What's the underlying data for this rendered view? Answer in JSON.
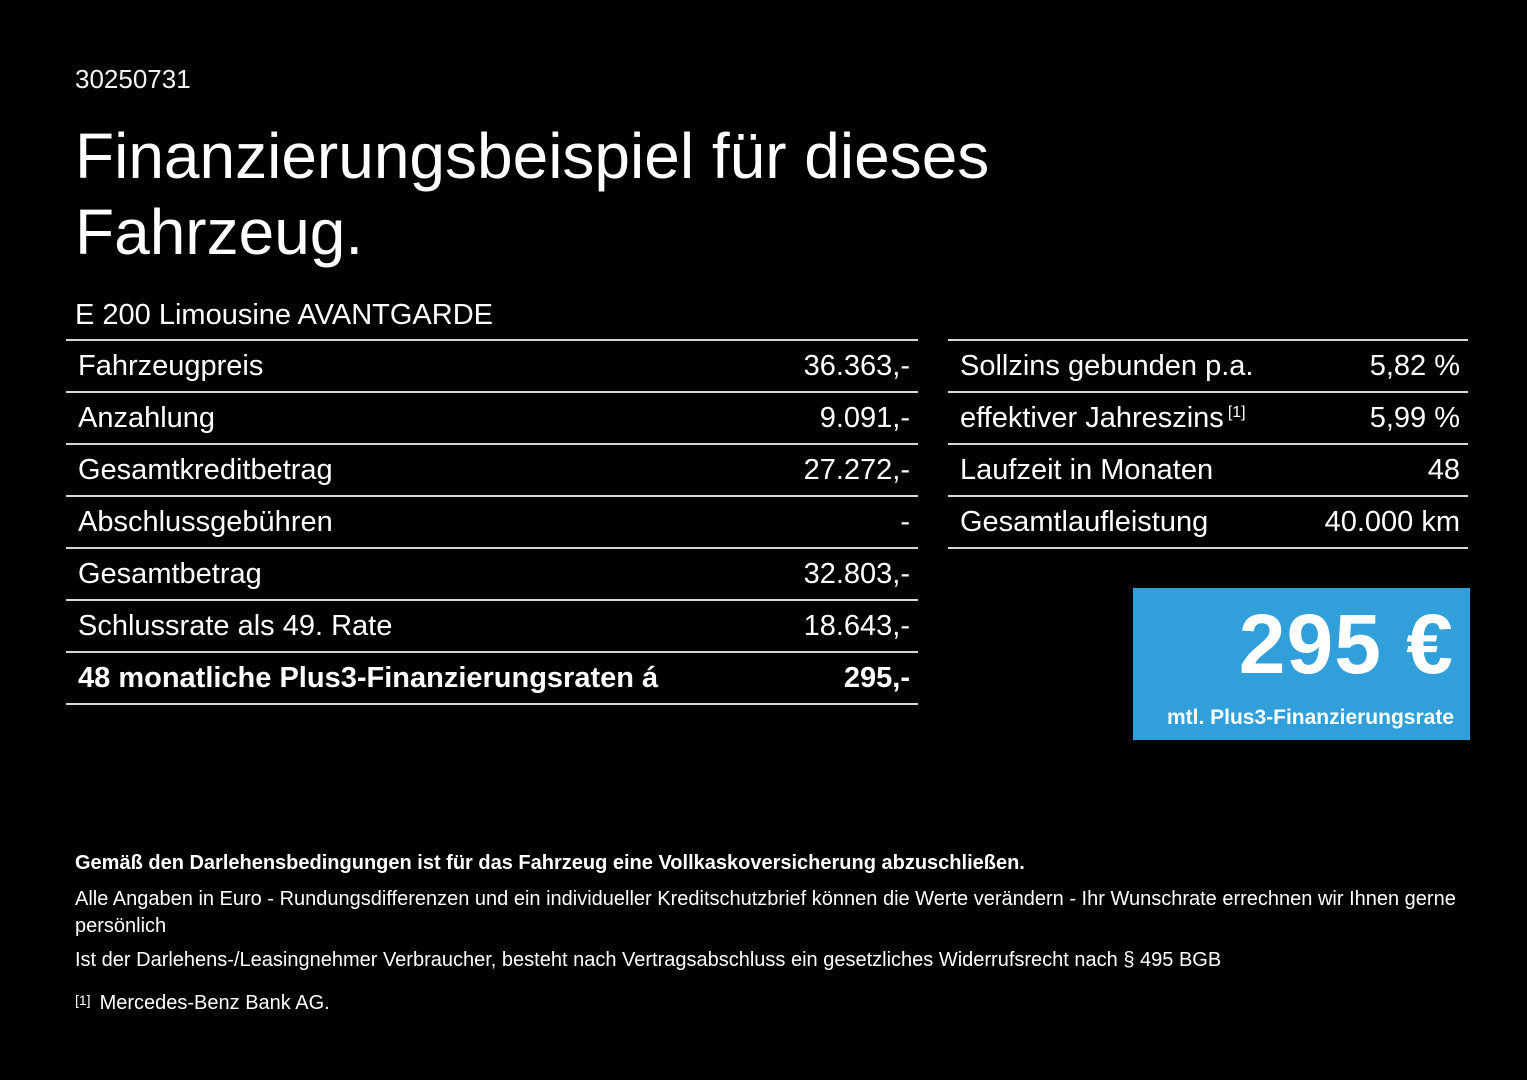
{
  "doc_number": "30250731",
  "title": "Finanzierungsbeispiel für dieses Fahrzeug.",
  "vehicle": "E 200 Limousine AVANTGARDE",
  "left_table": {
    "rows": [
      {
        "label": "Fahrzeugpreis",
        "value": "36.363,-"
      },
      {
        "label": "Anzahlung",
        "value": "9.091,-"
      },
      {
        "label": "Gesamtkreditbetrag",
        "value": "27.272,-"
      },
      {
        "label": "Abschlussgebühren",
        "value": "-"
      },
      {
        "label": "Gesamtbetrag",
        "value": "32.803,-"
      },
      {
        "label": "Schlussrate als 49. Rate",
        "value": "18.643,-"
      },
      {
        "label": "48 monatliche Plus3-Finanzierungsraten á",
        "value": "295,-"
      }
    ]
  },
  "right_table": {
    "rows": [
      {
        "label": "Sollzins gebunden p.a.",
        "value": "5,82 %"
      },
      {
        "label": "effektiver Jahreszins",
        "sup": "[1]",
        "value": "5,99 %"
      },
      {
        "label": "Laufzeit in Monaten",
        "value": "48"
      },
      {
        "label": "Gesamtlaufleistung",
        "value": "40.000 km"
      }
    ]
  },
  "price_box": {
    "amount": "295 €",
    "caption": "mtl. Plus3-Finanzierungsrate",
    "background": "#319fd9"
  },
  "footer": {
    "bold_note": "Gemäß den Darlehensbedingungen ist für das Fahrzeug eine Vollkaskoversicherung abzuschließen.",
    "note1": "Alle Angaben in Euro - Rundungsdifferenzen und ein individueller Kreditschutzbrief können die Werte verändern - Ihr Wunschrate errechnen wir Ihnen gerne persönlich",
    "note2": "Ist der Darlehens-/Leasingnehmer Verbraucher, besteht nach Vertragsabschluss ein gesetzliches Widerrufsrecht nach § 495 BGB",
    "footnote_marker": "[1]",
    "footnote_text": "Mercedes-Benz Bank AG."
  },
  "colors": {
    "background": "#000000",
    "text": "#ffffff",
    "divider": "#d4d4d4",
    "accent_blue": "#319fd9"
  }
}
